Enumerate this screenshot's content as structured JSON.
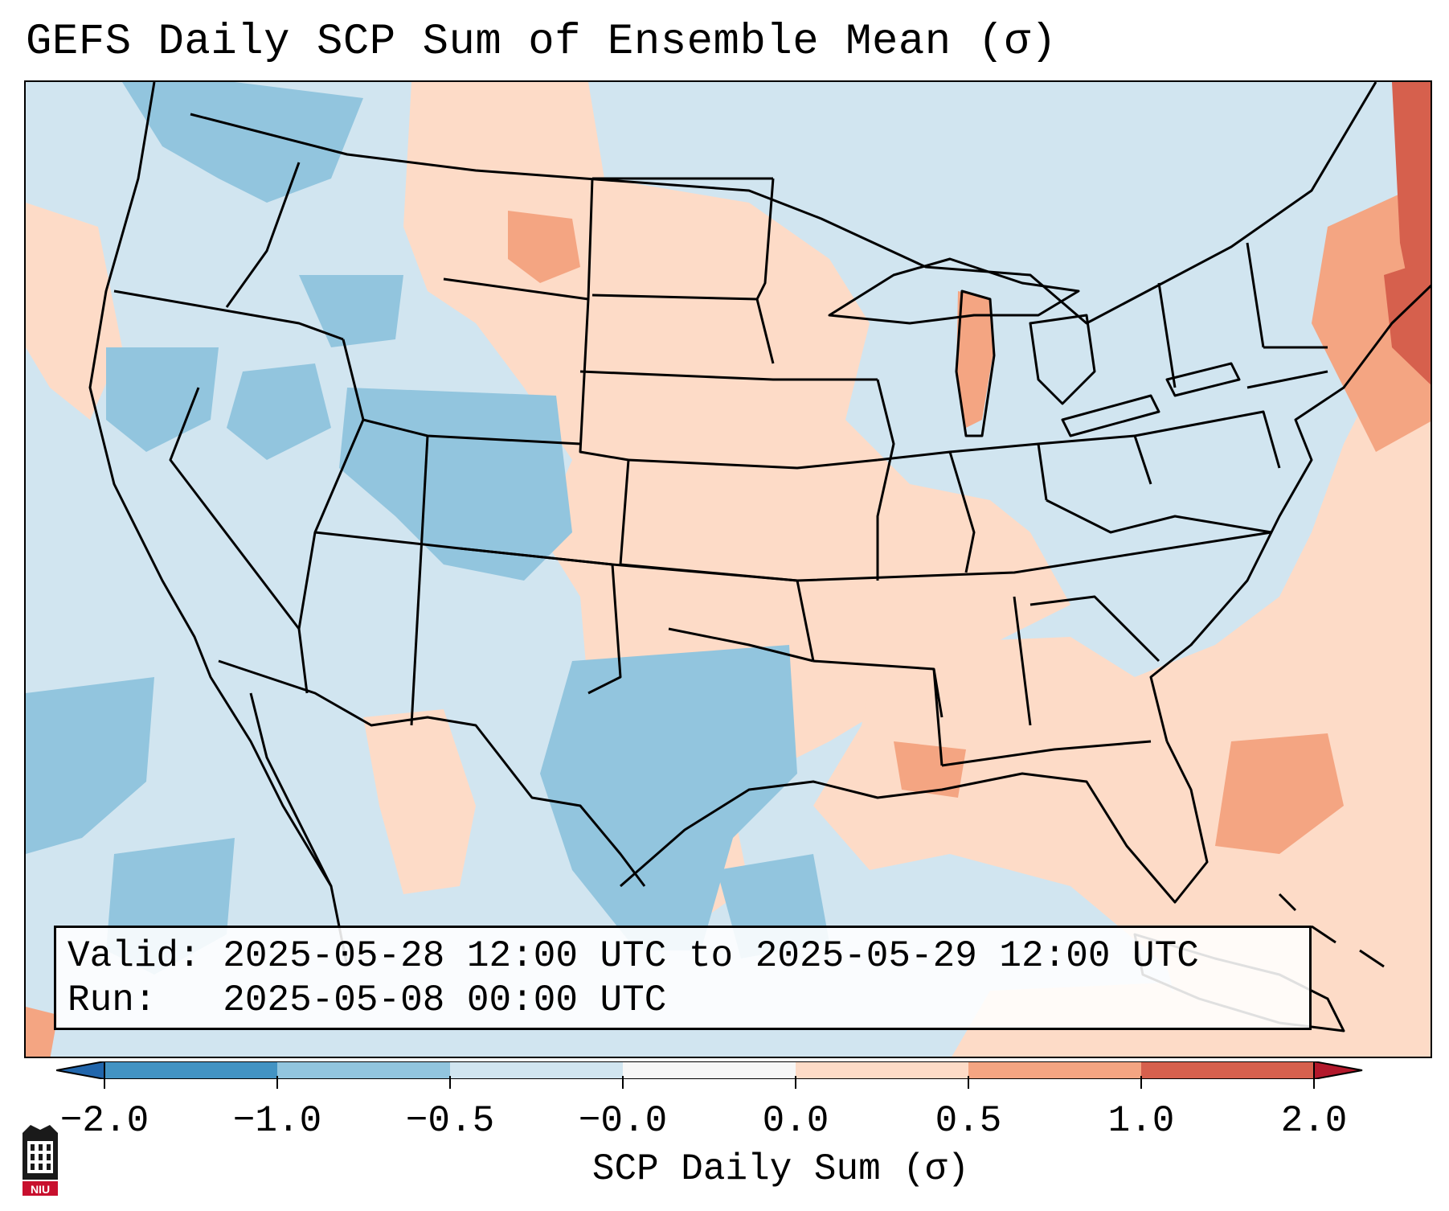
{
  "title": "GEFS Daily SCP Sum of Ensemble Mean (σ)",
  "info": {
    "valid_label": "Valid:",
    "valid_value": "2025-05-28 12:00 UTC to 2025-05-29 12:00 UTC",
    "run_label": "Run:",
    "run_value": "2025-05-08 00:00 UTC"
  },
  "colorbar": {
    "label": "SCP Daily Sum (σ)",
    "ticks": [
      "−2.0",
      "−1.0",
      "−0.5",
      "−0.0",
      "0.0",
      "0.5",
      "1.0",
      "2.0"
    ],
    "bins": [
      {
        "range": "-2.0 to -1.0",
        "color": "#4393c3"
      },
      {
        "range": "-1.0 to -0.5",
        "color": "#92c5de"
      },
      {
        "range": "-0.5 to -0.0",
        "color": "#d1e5f0"
      },
      {
        "range": "-0.0 to 0.0",
        "color": "#f7f7f7"
      },
      {
        "range": "0.0 to 0.5",
        "color": "#fddbc7"
      },
      {
        "range": "0.5 to 1.0",
        "color": "#f4a582"
      },
      {
        "range": "1.0 to 2.0",
        "color": "#d6604d"
      }
    ],
    "under_color": "#2166ac",
    "over_color": "#b2182b",
    "extend": "both"
  },
  "map": {
    "region": "Contiguous United States",
    "projection": "Lambert Conformal",
    "background_color": "#d1e5f0"
  },
  "logo": {
    "text": "NIU",
    "icon": "university-seal-icon"
  }
}
